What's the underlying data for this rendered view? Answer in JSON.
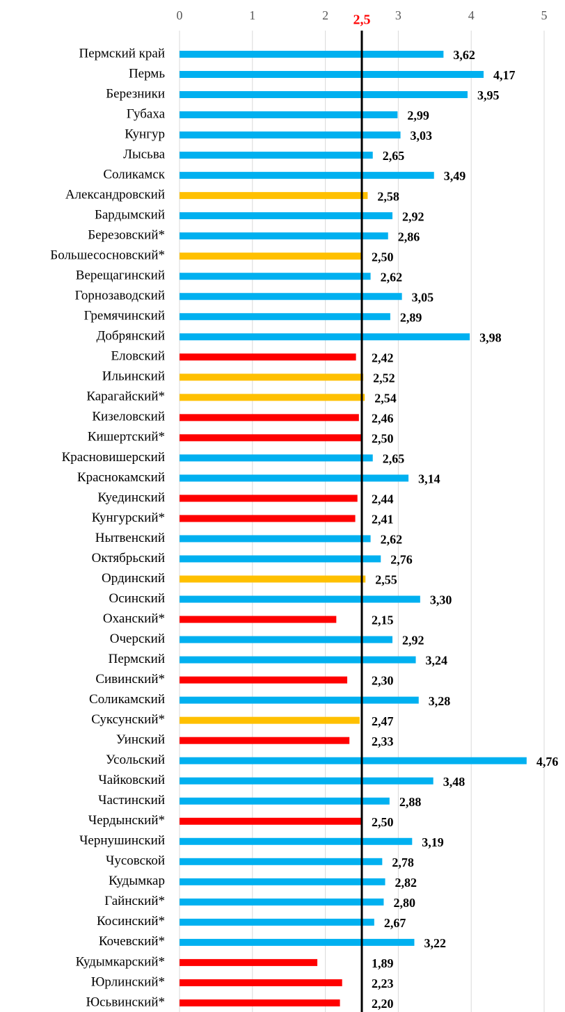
{
  "chart_data": {
    "type": "bar",
    "orientation": "horizontal",
    "categories": [
      "Пермский край",
      "Пермь",
      "Березники",
      "Губаха",
      "Кунгур",
      "Лысьва",
      "Соликамск",
      "Александровский",
      "Бардымский",
      "Березовский*",
      "Большесосновский*",
      "Верещагинский",
      "Горнозаводский",
      "Гремячинский",
      "Добрянский",
      "Еловский",
      "Ильинский",
      "Карагайский*",
      "Кизеловский",
      "Кишертский*",
      "Красновишерский",
      "Краснокамский",
      "Куединский",
      "Кунгурский*",
      "Нытвенский",
      "Октябрьский",
      "Ординский",
      "Осинский",
      "Оханский*",
      "Очерский",
      "Пермский",
      "Сивинский*",
      "Соликамский",
      "Суксунский*",
      "Уинский",
      "Усольский",
      "Чайковский",
      "Частинский",
      "Чердынский*",
      "Чернушинский",
      "Чусовской",
      "Кудымкар",
      "Гайнский*",
      "Косинский*",
      "Кочевский*",
      "Кудымкарский*",
      "Юрлинский*",
      "Юсьвинский*"
    ],
    "values": [
      3.62,
      4.17,
      3.95,
      2.99,
      3.03,
      2.65,
      3.49,
      2.58,
      2.92,
      2.86,
      2.5,
      2.62,
      3.05,
      2.89,
      3.98,
      2.42,
      2.52,
      2.54,
      2.46,
      2.5,
      2.65,
      3.14,
      2.44,
      2.41,
      2.62,
      2.76,
      2.55,
      3.3,
      2.15,
      2.92,
      3.24,
      2.3,
      3.28,
      2.47,
      2.33,
      4.76,
      3.48,
      2.88,
      2.5,
      3.19,
      2.78,
      2.82,
      2.8,
      2.67,
      3.22,
      1.89,
      2.23,
      2.2
    ],
    "value_labels": [
      "3,62",
      "4,17",
      "3,95",
      "2,99",
      "3,03",
      "2,65",
      "3,49",
      "2,58",
      "2,92",
      "2,86",
      "2,50",
      "2,62",
      "3,05",
      "2,89",
      "3,98",
      "2,42",
      "2,52",
      "2,54",
      "2,46",
      "2,50",
      "2,65",
      "3,14",
      "2,44",
      "2,41",
      "2,62",
      "2,76",
      "2,55",
      "3,30",
      "2,15",
      "2,92",
      "3,24",
      "2,30",
      "3,28",
      "2,47",
      "2,33",
      "4,76",
      "3,48",
      "2,88",
      "2,50",
      "3,19",
      "2,78",
      "2,82",
      "2,80",
      "2,67",
      "3,22",
      "1,89",
      "2,23",
      "2,20"
    ],
    "colors": [
      "#00b0f0",
      "#00b0f0",
      "#00b0f0",
      "#00b0f0",
      "#00b0f0",
      "#00b0f0",
      "#00b0f0",
      "#ffc000",
      "#00b0f0",
      "#00b0f0",
      "#ffc000",
      "#00b0f0",
      "#00b0f0",
      "#00b0f0",
      "#00b0f0",
      "#ff0000",
      "#ffc000",
      "#ffc000",
      "#ff0000",
      "#ff0000",
      "#00b0f0",
      "#00b0f0",
      "#ff0000",
      "#ff0000",
      "#00b0f0",
      "#00b0f0",
      "#ffc000",
      "#00b0f0",
      "#ff0000",
      "#00b0f0",
      "#00b0f0",
      "#ff0000",
      "#00b0f0",
      "#ffc000",
      "#ff0000",
      "#00b0f0",
      "#00b0f0",
      "#00b0f0",
      "#ff0000",
      "#00b0f0",
      "#00b0f0",
      "#00b0f0",
      "#00b0f0",
      "#00b0f0",
      "#00b0f0",
      "#ff0000",
      "#ff0000",
      "#ff0000"
    ],
    "xlim": [
      0,
      5
    ],
    "xticks": [
      0,
      1,
      2,
      3,
      4,
      5
    ],
    "grid": true,
    "reference_line": {
      "value": 2.5,
      "label": "2,5",
      "color": "#ff0000"
    }
  }
}
